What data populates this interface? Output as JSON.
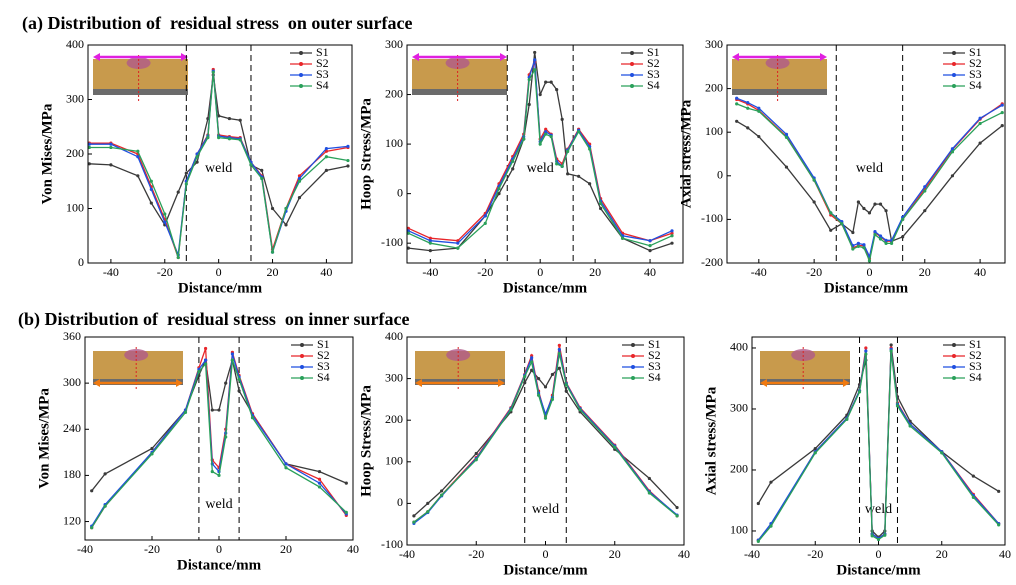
{
  "headings": [
    "(a) Distribution of  residual stress  on outer surface",
    "(b) Distribution of  residual stress  on inner surface"
  ],
  "chart_data": [
    {
      "type": "line",
      "xlabel": "Distance/mm",
      "ylabel": "Von Mises/MPa",
      "annotation": "weld",
      "weld_lines": [
        -12,
        12
      ],
      "xlim": [
        -48.5,
        49.5
      ],
      "ylim": [
        0,
        400
      ],
      "xticks": [
        -40,
        -20,
        0,
        20,
        40
      ],
      "yticks": [
        0,
        100,
        200,
        300,
        400
      ],
      "x": [
        -48,
        -40,
        -30,
        -25,
        -20,
        -15,
        -12,
        -8,
        -4,
        -2,
        0,
        4,
        8,
        12,
        16,
        20,
        25,
        30,
        40,
        48
      ],
      "series": [
        {
          "name": "S1",
          "color": "#3a3a3a",
          "values": [
            182,
            180,
            160,
            110,
            70,
            130,
            165,
            185,
            265,
            345,
            270,
            265,
            262,
            180,
            170,
            100,
            70,
            120,
            170,
            178
          ]
        },
        {
          "name": "S2",
          "color": "#e8262a",
          "values": [
            220,
            220,
            200,
            140,
            80,
            10,
            150,
            200,
            235,
            355,
            235,
            232,
            230,
            185,
            160,
            25,
            100,
            160,
            205,
            212
          ]
        },
        {
          "name": "S3",
          "color": "#1f4fe0",
          "values": [
            218,
            218,
            195,
            135,
            75,
            15,
            150,
            200,
            233,
            352,
            233,
            230,
            228,
            185,
            158,
            20,
            95,
            155,
            210,
            214
          ]
        },
        {
          "name": "S4",
          "color": "#2aa05a",
          "values": [
            212,
            212,
            205,
            150,
            90,
            10,
            145,
            195,
            230,
            350,
            230,
            228,
            226,
            180,
            155,
            20,
            100,
            150,
            195,
            188
          ]
        }
      ]
    },
    {
      "type": "line",
      "xlabel": "Distance/mm",
      "ylabel": "Hoop Stress/MPa",
      "annotation": "weld",
      "weld_lines": [
        -12,
        12
      ],
      "xlim": [
        -48.5,
        52
      ],
      "ylim": [
        -140,
        300
      ],
      "xticks": [
        -40,
        -20,
        0,
        20,
        40
      ],
      "yticks": [
        -100,
        0,
        100,
        200,
        300
      ],
      "x": [
        -48,
        -40,
        -30,
        -20,
        -15,
        -10,
        -6,
        -4,
        -2,
        0,
        2,
        4,
        6,
        8,
        10,
        14,
        18,
        22,
        30,
        40,
        48
      ],
      "series": [
        {
          "name": "S1",
          "color": "#3a3a3a",
          "values": [
            -110,
            -115,
            -110,
            -45,
            0,
            50,
            110,
            180,
            285,
            200,
            225,
            225,
            210,
            150,
            40,
            35,
            20,
            -30,
            -90,
            -115,
            -100
          ]
        },
        {
          "name": "S2",
          "color": "#e8262a",
          "values": [
            -70,
            -90,
            -95,
            -40,
            20,
            75,
            120,
            240,
            265,
            110,
            130,
            120,
            70,
            60,
            90,
            130,
            100,
            -10,
            -80,
            -95,
            -80
          ]
        },
        {
          "name": "S3",
          "color": "#1f4fe0",
          "values": [
            -75,
            -95,
            -100,
            -45,
            15,
            70,
            115,
            235,
            270,
            105,
            125,
            118,
            65,
            55,
            88,
            128,
            95,
            -15,
            -85,
            -95,
            -75
          ]
        },
        {
          "name": "S4",
          "color": "#2aa05a",
          "values": [
            -80,
            -100,
            -110,
            -60,
            10,
            65,
            110,
            230,
            250,
            100,
            120,
            115,
            60,
            55,
            85,
            125,
            90,
            -20,
            -90,
            -105,
            -85
          ]
        }
      ]
    },
    {
      "type": "line",
      "xlabel": "Distance/mm",
      "ylabel": "Axial stress/MPa",
      "annotation": "weld",
      "weld_lines": [
        -12,
        12
      ],
      "xlim": [
        -51.5,
        49
      ],
      "ylim": [
        -200,
        300
      ],
      "xticks": [
        -40,
        -20,
        0,
        20,
        40
      ],
      "yticks": [
        -200,
        -100,
        0,
        100,
        200,
        300
      ],
      "x": [
        -48,
        -44,
        -40,
        -30,
        -20,
        -14,
        -10,
        -6,
        -4,
        -2,
        0,
        2,
        4,
        6,
        8,
        12,
        20,
        30,
        40,
        48
      ],
      "series": [
        {
          "name": "S1",
          "color": "#3a3a3a",
          "values": [
            125,
            110,
            90,
            20,
            -60,
            -125,
            -110,
            -130,
            -60,
            -75,
            -85,
            -65,
            -65,
            -80,
            -150,
            -140,
            -80,
            0,
            75,
            115
          ]
        },
        {
          "name": "S2",
          "color": "#e8262a",
          "values": [
            175,
            165,
            150,
            90,
            -10,
            -90,
            -110,
            -165,
            -160,
            -160,
            -190,
            -130,
            -140,
            -150,
            -150,
            -100,
            -30,
            60,
            130,
            165
          ]
        },
        {
          "name": "S3",
          "color": "#1f4fe0",
          "values": [
            178,
            168,
            155,
            95,
            -5,
            -85,
            -105,
            -160,
            -155,
            -158,
            -185,
            -128,
            -138,
            -148,
            -148,
            -95,
            -25,
            62,
            132,
            162
          ]
        },
        {
          "name": "S4",
          "color": "#2aa05a",
          "values": [
            165,
            155,
            148,
            88,
            -10,
            -85,
            -110,
            -168,
            -162,
            -165,
            -195,
            -135,
            -145,
            -155,
            -155,
            -100,
            -35,
            55,
            120,
            145
          ]
        }
      ]
    },
    {
      "type": "line",
      "xlabel": "Distance/mm",
      "ylabel": "Von Mises/MPa",
      "annotation": "weld",
      "weld_lines": [
        -6,
        6
      ],
      "xlim": [
        -40,
        40
      ],
      "ylim": [
        96,
        360
      ],
      "xticks": [
        -40,
        -20,
        0,
        20,
        40
      ],
      "yticks": [
        120,
        180,
        240,
        300,
        360
      ],
      "x": [
        -38,
        -34,
        -20,
        -10,
        -6,
        -4,
        -2,
        0,
        2,
        4,
        6,
        10,
        20,
        30,
        38
      ],
      "series": [
        {
          "name": "S1",
          "color": "#3a3a3a",
          "values": [
            160,
            182,
            215,
            265,
            310,
            330,
            265,
            265,
            300,
            330,
            290,
            260,
            195,
            185,
            170
          ]
        },
        {
          "name": "S2",
          "color": "#e8262a",
          "values": [
            112,
            140,
            210,
            265,
            320,
            345,
            200,
            190,
            240,
            340,
            310,
            260,
            195,
            175,
            128
          ]
        },
        {
          "name": "S3",
          "color": "#1f4fe0",
          "values": [
            114,
            142,
            210,
            265,
            318,
            330,
            195,
            185,
            235,
            338,
            308,
            258,
            195,
            170,
            130
          ]
        },
        {
          "name": "S4",
          "color": "#2aa05a",
          "values": [
            112,
            140,
            208,
            262,
            315,
            325,
            185,
            180,
            230,
            330,
            305,
            255,
            190,
            165,
            132
          ]
        }
      ]
    },
    {
      "type": "line",
      "xlabel": "Distance/mm",
      "ylabel": "Hoop Stress/MPa",
      "annotation": "weld",
      "weld_lines": [
        -6,
        6
      ],
      "xlim": [
        -40,
        40
      ],
      "ylim": [
        -100,
        400
      ],
      "xticks": [
        -40,
        -20,
        0,
        20,
        40
      ],
      "yticks": [
        -100,
        0,
        100,
        200,
        300,
        400
      ],
      "x": [
        -38,
        -34,
        -30,
        -20,
        -10,
        -6,
        -4,
        -2,
        0,
        2,
        4,
        6,
        10,
        20,
        30,
        38
      ],
      "series": [
        {
          "name": "S1",
          "color": "#3a3a3a",
          "values": [
            -30,
            0,
            30,
            120,
            220,
            290,
            320,
            300,
            280,
            310,
            325,
            270,
            220,
            130,
            60,
            -10
          ]
        },
        {
          "name": "S2",
          "color": "#e8262a",
          "values": [
            -45,
            -20,
            20,
            110,
            230,
            310,
            355,
            270,
            210,
            260,
            380,
            290,
            230,
            140,
            30,
            -30
          ]
        },
        {
          "name": "S3",
          "color": "#1f4fe0",
          "values": [
            -48,
            -22,
            18,
            108,
            228,
            308,
            350,
            265,
            215,
            255,
            370,
            288,
            228,
            138,
            28,
            -28
          ]
        },
        {
          "name": "S4",
          "color": "#2aa05a",
          "values": [
            -45,
            -20,
            20,
            105,
            225,
            305,
            340,
            260,
            205,
            250,
            360,
            285,
            225,
            135,
            25,
            -30
          ]
        }
      ]
    },
    {
      "type": "line",
      "xlabel": "Distance/mm",
      "ylabel": "Axial stress/MPa",
      "annotation": "weld",
      "weld_lines": [
        -6,
        6
      ],
      "xlim": [
        -40,
        40
      ],
      "ylim": [
        77,
        418
      ],
      "xticks": [
        -40,
        -20,
        0,
        20,
        40
      ],
      "yticks": [
        100,
        200,
        300,
        400
      ],
      "x": [
        -38,
        -34,
        -20,
        -10,
        -6,
        -4,
        -2,
        0,
        2,
        4,
        6,
        10,
        20,
        30,
        38
      ],
      "series": [
        {
          "name": "S1",
          "color": "#3a3a3a",
          "values": [
            145,
            180,
            235,
            290,
            340,
            380,
            100,
            90,
            100,
            405,
            320,
            280,
            230,
            190,
            165
          ]
        },
        {
          "name": "S2",
          "color": "#e8262a",
          "values": [
            85,
            110,
            230,
            285,
            330,
            400,
            95,
            88,
            95,
            400,
            310,
            275,
            230,
            160,
            112
          ]
        },
        {
          "name": "S3",
          "color": "#1f4fe0",
          "values": [
            85,
            112,
            230,
            285,
            330,
            395,
            95,
            88,
            95,
            398,
            308,
            275,
            230,
            158,
            112
          ]
        },
        {
          "name": "S4",
          "color": "#2aa05a",
          "values": [
            83,
            108,
            228,
            283,
            328,
            390,
            92,
            86,
            93,
            395,
            305,
            272,
            228,
            155,
            110
          ]
        }
      ]
    }
  ]
}
